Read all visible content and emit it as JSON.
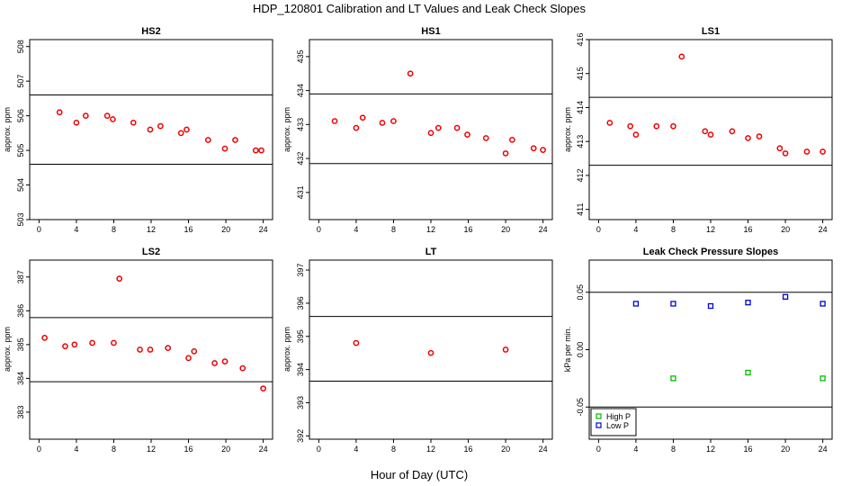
{
  "suptitle": "HDP_120801  Calibration and LT Values and Leak Check Slopes",
  "common_xlabel": "Hour of Day (UTC)",
  "colors": {
    "cal": "#ee0000",
    "high_p": "#00bb00",
    "low_p": "#0000dd",
    "ref_line": "#000000"
  },
  "chart_data": [
    {
      "type": "scatter",
      "title": "HS2",
      "ylabel": "approx. ppm",
      "xlim": [
        -1,
        25
      ],
      "ylim": [
        503,
        508.2
      ],
      "xticks": [
        0,
        4,
        8,
        12,
        16,
        20,
        24
      ],
      "yticks": [
        503,
        504,
        505,
        506,
        507,
        508
      ],
      "hlines": [
        504.6,
        506.6
      ],
      "marker": "circle",
      "color": "#ee0000",
      "x": [
        2.2,
        4.0,
        5.0,
        7.3,
        7.9,
        10.1,
        11.9,
        13.0,
        15.2,
        15.8,
        18.1,
        19.9,
        21.0,
        23.2,
        23.8
      ],
      "y": [
        506.1,
        505.8,
        506.0,
        506.0,
        505.9,
        505.8,
        505.6,
        505.7,
        505.5,
        505.6,
        505.3,
        505.05,
        505.3,
        505.0,
        505.0
      ]
    },
    {
      "type": "scatter",
      "title": "HS1",
      "ylabel": "approx. ppm",
      "xlim": [
        -1,
        25
      ],
      "ylim": [
        430.2,
        435.5
      ],
      "xticks": [
        0,
        4,
        8,
        12,
        16,
        20,
        24
      ],
      "yticks": [
        431,
        432,
        433,
        434,
        435
      ],
      "hlines": [
        431.85,
        433.9
      ],
      "marker": "circle",
      "color": "#ee0000",
      "x": [
        1.7,
        4.0,
        4.7,
        6.8,
        8.0,
        9.8,
        12.0,
        12.8,
        14.8,
        15.9,
        17.9,
        20.0,
        20.7,
        23.0,
        24.0
      ],
      "y": [
        433.1,
        432.9,
        433.2,
        433.05,
        433.1,
        434.5,
        432.75,
        432.9,
        432.9,
        432.7,
        432.6,
        432.15,
        432.55,
        432.3,
        432.25
      ]
    },
    {
      "type": "scatter",
      "title": "LS1",
      "ylabel": "approx. ppm",
      "xlim": [
        -1,
        25
      ],
      "ylim": [
        410.7,
        416.0
      ],
      "xticks": [
        0,
        4,
        8,
        12,
        16,
        20,
        24
      ],
      "yticks": [
        411,
        412,
        413,
        414,
        415,
        416
      ],
      "hlines": [
        412.3,
        414.3
      ],
      "marker": "circle",
      "color": "#ee0000",
      "x": [
        1.2,
        3.4,
        4.0,
        6.2,
        8.0,
        8.9,
        11.4,
        12.0,
        14.3,
        16.0,
        17.2,
        19.4,
        20.0,
        22.3,
        24.0
      ],
      "y": [
        413.55,
        413.45,
        413.2,
        413.45,
        413.45,
        415.5,
        413.3,
        413.2,
        413.3,
        413.1,
        413.15,
        412.8,
        412.65,
        412.7,
        412.7
      ]
    },
    {
      "type": "scatter",
      "title": "LS2",
      "ylabel": "approx. ppm",
      "xlim": [
        -1,
        25
      ],
      "ylim": [
        382.2,
        387.5
      ],
      "xticks": [
        0,
        4,
        8,
        12,
        16,
        20,
        24
      ],
      "yticks": [
        383,
        384,
        385,
        386,
        387
      ],
      "hlines": [
        383.9,
        385.8
      ],
      "marker": "circle",
      "color": "#ee0000",
      "x": [
        0.6,
        2.8,
        3.8,
        5.7,
        8.0,
        8.6,
        10.8,
        11.9,
        13.8,
        16.0,
        16.6,
        18.8,
        19.9,
        21.8,
        24.0
      ],
      "y": [
        385.2,
        384.95,
        385.0,
        385.05,
        385.05,
        386.95,
        384.85,
        384.85,
        384.9,
        384.6,
        384.8,
        384.45,
        384.5,
        384.3,
        383.7
      ]
    },
    {
      "type": "scatter",
      "title": "LT",
      "ylabel": "approx. ppm",
      "xlim": [
        -1,
        25
      ],
      "ylim": [
        391.9,
        397.3
      ],
      "xticks": [
        0,
        4,
        8,
        12,
        16,
        20,
        24
      ],
      "yticks": [
        392,
        393,
        394,
        395,
        396,
        397
      ],
      "hlines": [
        393.65,
        395.6
      ],
      "marker": "circle",
      "color": "#ee0000",
      "x": [
        4.0,
        12.0,
        20.0
      ],
      "y": [
        394.8,
        394.5,
        394.6
      ]
    },
    {
      "type": "scatter",
      "title": "Leak Check Pressure Slopes",
      "ylabel": "kPa per min.",
      "xlim": [
        -1,
        25
      ],
      "ylim": [
        -0.078,
        0.078
      ],
      "xticks": [
        0,
        4,
        8,
        12,
        16,
        20,
        24
      ],
      "yticks": [
        -0.05,
        0.0,
        0.05
      ],
      "ytick_labels": [
        "-0.05",
        "0.00",
        "0.05"
      ],
      "hlines": [
        -0.05,
        0.05
      ],
      "legend": "bottom-left",
      "series": [
        {
          "name": "High P",
          "color": "#00bb00",
          "marker": "square",
          "x": [
            8.0,
            16.0,
            24.0
          ],
          "y": [
            -0.025,
            -0.02,
            -0.025
          ]
        },
        {
          "name": "Low P",
          "color": "#0000dd",
          "marker": "square",
          "x": [
            4.0,
            8.0,
            12.0,
            16.0,
            20.0,
            24.0
          ],
          "y": [
            0.04,
            0.04,
            0.038,
            0.041,
            0.046,
            0.04
          ]
        }
      ]
    }
  ]
}
